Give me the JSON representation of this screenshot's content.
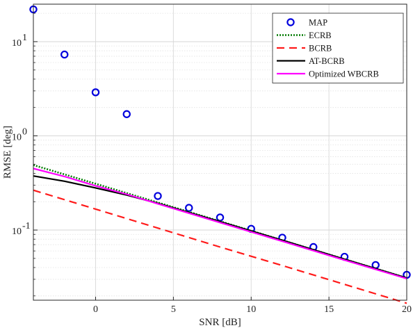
{
  "chart_data": {
    "type": "line",
    "xlabel": "SNR [dB]",
    "ylabel": "RMSE [deg]",
    "xlim": [
      -4,
      20
    ],
    "ylim": [
      0.018,
      25
    ],
    "yscale": "log",
    "grid": true,
    "legend_position": "top-right",
    "x_ticks": [
      0,
      5,
      10,
      15,
      20
    ],
    "y_ticks": [
      {
        "value": 0.1,
        "base": "10",
        "exp": "-1"
      },
      {
        "value": 1,
        "base": "10",
        "exp": "0"
      },
      {
        "value": 10,
        "base": "10",
        "exp": "1"
      }
    ],
    "series": [
      {
        "name": "MAP",
        "style": "markers",
        "color": "#0000dd",
        "x": [
          -4,
          -2,
          0,
          2,
          4,
          6,
          8,
          10,
          12,
          14,
          16,
          18,
          20
        ],
        "y": [
          22,
          7.3,
          2.9,
          1.7,
          0.23,
          0.172,
          0.136,
          0.103,
          0.083,
          0.066,
          0.052,
          0.0425,
          0.0335
        ]
      },
      {
        "name": "ECRB",
        "style": "dotted",
        "color": "#007a00",
        "x": [
          -4,
          0,
          4,
          8,
          12,
          16,
          20
        ],
        "y": [
          0.49,
          0.31,
          0.196,
          0.124,
          0.078,
          0.049,
          0.031
        ]
      },
      {
        "name": "BCRB",
        "style": "dashed",
        "color": "#ff1a1a",
        "x": [
          -4,
          0,
          4,
          8,
          12,
          16,
          20
        ],
        "y": [
          0.265,
          0.167,
          0.105,
          0.066,
          0.042,
          0.0265,
          0.0167
        ]
      },
      {
        "name": "AT-BCRB",
        "style": "solid",
        "color": "#000000",
        "x": [
          -4,
          -2,
          0,
          2,
          4,
          8,
          12,
          16,
          20
        ],
        "y": [
          0.375,
          0.33,
          0.28,
          0.235,
          0.192,
          0.123,
          0.078,
          0.049,
          0.031
        ]
      },
      {
        "name": "Optimized WBCRB",
        "style": "solid",
        "color": "#ff00ff",
        "x": [
          -4,
          -2,
          0,
          2,
          4,
          8,
          12,
          16,
          20
        ],
        "y": [
          0.45,
          0.37,
          0.295,
          0.24,
          0.19,
          0.12,
          0.076,
          0.048,
          0.0305
        ]
      }
    ]
  }
}
